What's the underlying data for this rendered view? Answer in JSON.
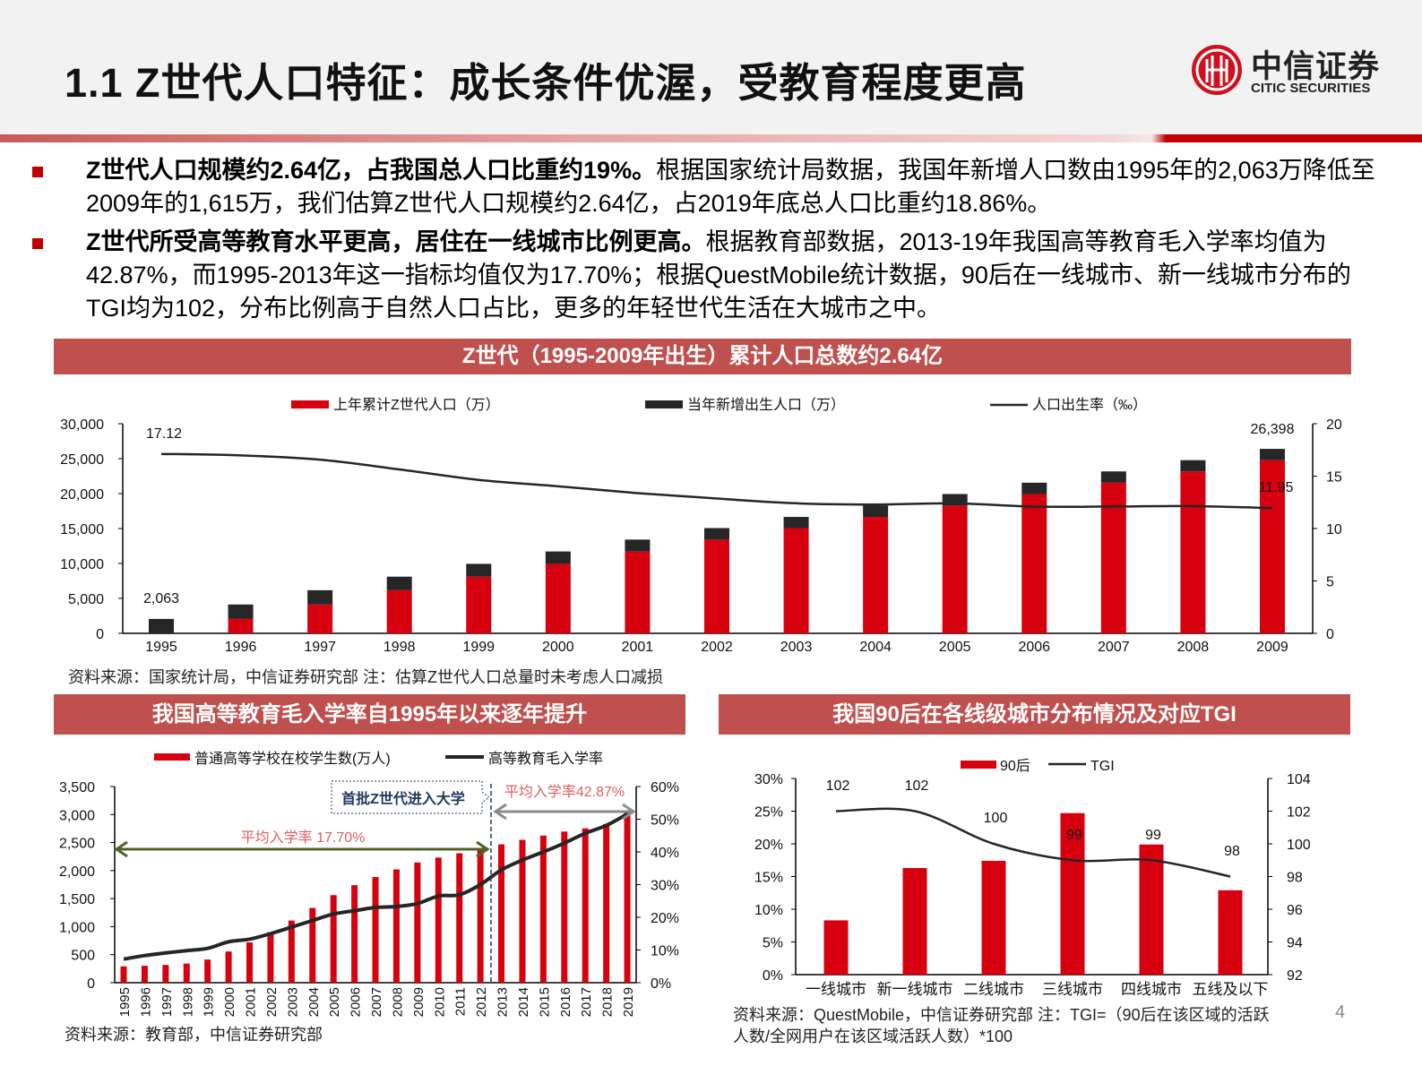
{
  "header": {
    "title": "1.1 Z世代人口特征：成长条件优渥，受教育程度更高",
    "logo_cn": "中信证券",
    "logo_en": "CITIC SECURITIES"
  },
  "bullets": [
    {
      "bold": "Z世代人口规模约2.64亿，占我国总人口比重约19%。",
      "text": "根据国家统计局数据，我国年新增人口数由1995年的2,063万降低至2009年的1,615万，我们估算Z世代人口规模约2.64亿，占2019年底总人口比重约18.86%。"
    },
    {
      "bold": "Z世代所受高等教育水平更高，居住在一线城市比例更高。",
      "text": "根据教育部数据，2013-19年我国高等教育毛入学率均值为42.87%，而1995-2013年这一指标均值仅为17.70%；根据QuestMobile统计数据，90后在一线城市、新一线城市分布的TGI均为102，分布比例高于自然人口占比，更多的年轻世代生活在大城市之中。"
    }
  ],
  "page_number": "4",
  "colors": {
    "accent": "#c0504d",
    "bar_red": "#d7000f",
    "bar_black": "#262626",
    "line": "#262626"
  },
  "chart_data": [
    {
      "type": "bar",
      "title": "Z世代（1995-2009年出生）累计人口总数约2.64亿",
      "categories": [
        "1995",
        "1996",
        "1997",
        "1998",
        "1999",
        "2000",
        "2001",
        "2002",
        "2003",
        "2004",
        "2005",
        "2006",
        "2007",
        "2008",
        "2009"
      ],
      "series": [
        {
          "name": "上年累计Z世代人口（万）",
          "kind": "stacked-bar",
          "axis": "left",
          "color": "#d7000f",
          "values": [
            0,
            2063,
            4130,
            6168,
            8110,
            9944,
            11715,
            13417,
            15064,
            16663,
            18284,
            19939,
            21559,
            23175,
            24783
          ]
        },
        {
          "name": "当年新增出生人口（万）",
          "kind": "stacked-bar",
          "axis": "left",
          "color": "#262626",
          "values": [
            2063,
            2067,
            2038,
            1942,
            1834,
            1771,
            1702,
            1647,
            1599,
            1621,
            1655,
            1620,
            1616,
            1608,
            1615
          ]
        },
        {
          "name": "人口出生率（‰）",
          "kind": "line",
          "axis": "right",
          "color": "#262626",
          "values": [
            17.12,
            16.98,
            16.57,
            15.64,
            14.64,
            14.03,
            13.38,
            12.86,
            12.41,
            12.29,
            12.4,
            12.09,
            12.1,
            12.14,
            11.95
          ]
        }
      ],
      "ylim": [
        0,
        30000
      ],
      "y_ticks": [
        "0",
        "5,000",
        "10,000",
        "15,000",
        "20,000",
        "25,000",
        "30,000"
      ],
      "y2lim": [
        0,
        20
      ],
      "y2_ticks": [
        "0",
        "5",
        "10",
        "15",
        "20"
      ],
      "annotations": {
        "first_rate": "17.12",
        "first_births": "2,063",
        "last_total": "26,398",
        "last_rate": "11.95"
      },
      "legend": "top",
      "source": "资料来源：国家统计局，中信证券研究部 注：估算Z世代人口总量时未考虑人口减损"
    },
    {
      "type": "bar",
      "title": "我国高等教育毛入学率自1995年以来逐年提升",
      "categories": [
        "1995",
        "1996",
        "1997",
        "1998",
        "1999",
        "2000",
        "2001",
        "2002",
        "2003",
        "2004",
        "2005",
        "2006",
        "2007",
        "2008",
        "2009",
        "2010",
        "2011",
        "2012",
        "2013",
        "2014",
        "2015",
        "2016",
        "2017",
        "2018",
        "2019"
      ],
      "series": [
        {
          "name": "普通高等学校在校学生数(万人)",
          "kind": "bar",
          "axis": "left",
          "color": "#d7000f",
          "values": [
            291,
            302,
            317,
            341,
            413,
            556,
            719,
            903,
            1109,
            1334,
            1562,
            1739,
            1885,
            2021,
            2145,
            2232,
            2309,
            2391,
            2468,
            2548,
            2625,
            2696,
            2754,
            2831,
            3032
          ]
        },
        {
          "name": "高等教育毛入学率",
          "kind": "line",
          "axis": "right",
          "color": "#262626",
          "values": [
            7.2,
            8.3,
            9.1,
            9.8,
            10.5,
            12.5,
            13.3,
            15.0,
            17.0,
            19.0,
            21.0,
            22.0,
            23.0,
            23.3,
            24.2,
            26.5,
            26.9,
            30.0,
            34.5,
            37.5,
            40.0,
            42.7,
            45.7,
            48.1,
            51.6
          ]
        }
      ],
      "ylim": [
        0,
        3500
      ],
      "y_ticks": [
        "0",
        "500",
        "1,000",
        "1,500",
        "2,000",
        "2,500",
        "3,000",
        "3,500"
      ],
      "y2lim": [
        0,
        60
      ],
      "y2_ticks": [
        "0%",
        "10%",
        "20%",
        "30%",
        "40%",
        "50%",
        "60%"
      ],
      "annotations": {
        "avg_before": "平均入学率 17.70%",
        "avg_after": "平均入学率42.87%",
        "callout": "首批Z世代进入大学"
      },
      "legend": "top",
      "source": "资料来源：教育部，中信证券研究部"
    },
    {
      "type": "bar",
      "title": "我国90后在各线级城市分布情况及对应TGI",
      "categories": [
        "一线城市",
        "新一线城市",
        "二线城市",
        "三线城市",
        "四线城市",
        "五线及以下"
      ],
      "series": [
        {
          "name": "90后",
          "kind": "bar",
          "axis": "left",
          "color": "#d7000f",
          "values": [
            8.3,
            16.3,
            17.4,
            24.7,
            19.9,
            12.9
          ]
        },
        {
          "name": "TGI",
          "kind": "line",
          "axis": "right",
          "color": "#262626",
          "values": [
            102,
            102,
            100,
            99,
            99,
            98
          ]
        }
      ],
      "ylim": [
        0,
        30
      ],
      "y_ticks": [
        "0%",
        "5%",
        "10%",
        "15%",
        "20%",
        "25%",
        "30%"
      ],
      "y2lim": [
        92,
        104
      ],
      "y2_ticks": [
        "92",
        "94",
        "96",
        "98",
        "100",
        "102",
        "104"
      ],
      "data_labels": [
        "102",
        "102",
        "100",
        "99",
        "99",
        "98"
      ],
      "legend": "top",
      "source_line1": "资料来源：QuestMobile，中信证券研究部 注：TGI=（90后在该区域的活跃",
      "source_line2": "人数/全网用户在该区域活跃人数）*100"
    }
  ]
}
